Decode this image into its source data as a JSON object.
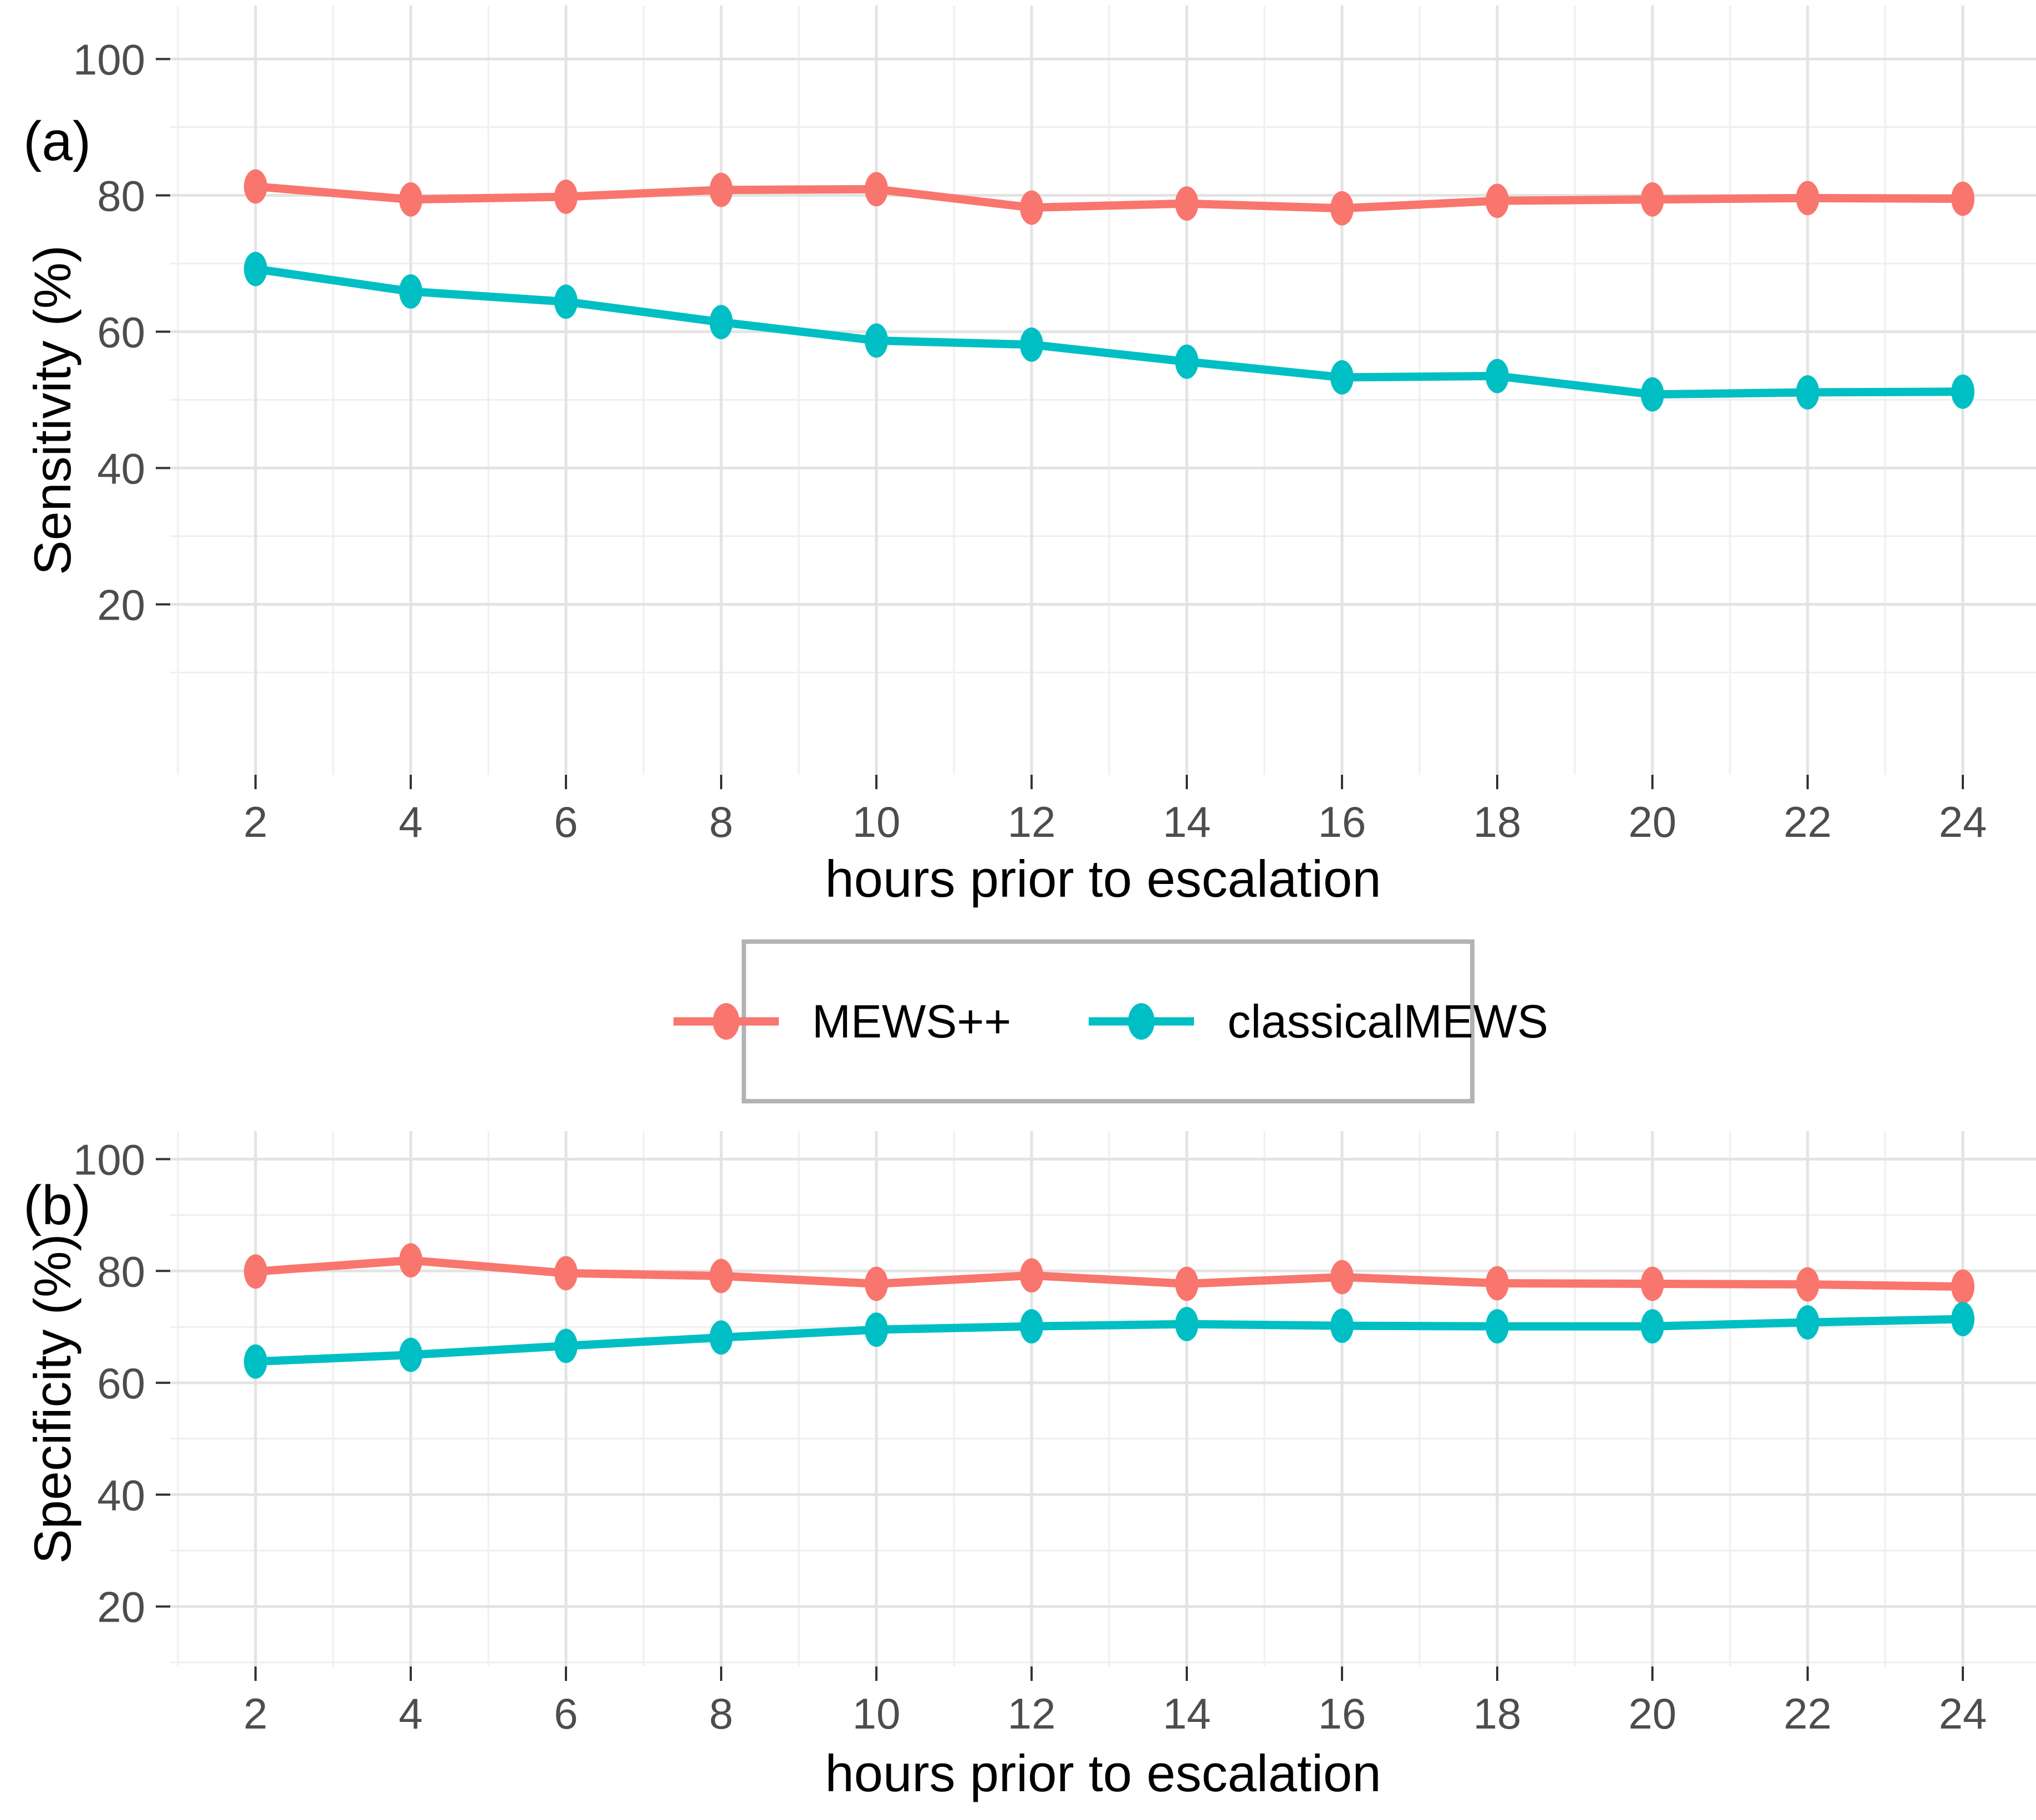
{
  "colors": {
    "mewspp": "#F8766D",
    "classical": "#00BFC4",
    "grid_major": "#E3E3E3",
    "grid_minor": "#EFEFEF",
    "tick_mark": "#333333",
    "tick_label": "#4D4D4D",
    "axis_title": "#000000",
    "legend_border": "#B3B3B3",
    "background": "#FFFFFF"
  },
  "legend": {
    "items": [
      {
        "label": "MEWS++",
        "color_key": "mewspp"
      },
      {
        "label": "classicalMEWS",
        "color_key": "classical"
      }
    ]
  },
  "chart_data": [
    {
      "type": "line",
      "tag": "(a)",
      "title": "",
      "xlabel": "hours prior to escalation",
      "ylabel": "Sensitivity (%)",
      "x": [
        2,
        4,
        6,
        8,
        10,
        12,
        14,
        16,
        18,
        20,
        22,
        24
      ],
      "x_tick_labels": [
        "2",
        "4",
        "6",
        "8",
        "10",
        "12",
        "14",
        "16",
        "18",
        "20",
        "22",
        "24"
      ],
      "y_major_ticks": [
        100,
        80,
        60,
        40,
        20
      ],
      "y_tick_labels": [
        "100",
        "80",
        "60",
        "40",
        "20"
      ],
      "y_minor_ticks": [
        90,
        70,
        50,
        30,
        10
      ],
      "ylim_visible": [
        -5,
        107.8
      ],
      "grid": "major and minor, light gray on white",
      "legend_position": "centered between panels",
      "series": [
        {
          "name": "MEWS++",
          "color_key": "mewspp",
          "values": [
            81.3,
            79.4,
            79.8,
            80.8,
            80.9,
            78.2,
            78.8,
            78.1,
            79.2,
            79.4,
            79.6,
            79.5
          ]
        },
        {
          "name": "classicalMEWS",
          "color_key": "classical",
          "values": [
            69.2,
            65.9,
            64.4,
            61.4,
            58.7,
            58.1,
            55.6,
            53.3,
            53.5,
            50.8,
            51.1,
            51.2
          ]
        }
      ]
    },
    {
      "type": "line",
      "tag": "(b)",
      "title": "",
      "xlabel": "hours prior to escalation",
      "ylabel": "Specificity (%)",
      "x": [
        2,
        4,
        6,
        8,
        10,
        12,
        14,
        16,
        18,
        20,
        22,
        24
      ],
      "x_tick_labels": [
        "2",
        "4",
        "6",
        "8",
        "10",
        "12",
        "14",
        "16",
        "18",
        "20",
        "22",
        "24"
      ],
      "y_major_ticks": [
        100,
        80,
        60,
        40,
        20
      ],
      "y_tick_labels": [
        "100",
        "80",
        "60",
        "40",
        "20"
      ],
      "y_minor_ticks": [
        90,
        70,
        50,
        30,
        10
      ],
      "ylim_visible": [
        9.3,
        105
      ],
      "grid": "major and minor, light gray on white",
      "legend_position": "shared legend above panel",
      "series": [
        {
          "name": "MEWS++",
          "color_key": "mewspp",
          "values": [
            79.9,
            81.9,
            79.6,
            79.1,
            77.7,
            79.2,
            77.7,
            78.9,
            77.8,
            77.7,
            77.6,
            77.2
          ]
        },
        {
          "name": "classicalMEWS",
          "color_key": "classical",
          "values": [
            63.8,
            65.0,
            66.6,
            68.1,
            69.5,
            70.1,
            70.5,
            70.2,
            70.1,
            70.1,
            70.8,
            71.4
          ]
        }
      ]
    }
  ]
}
